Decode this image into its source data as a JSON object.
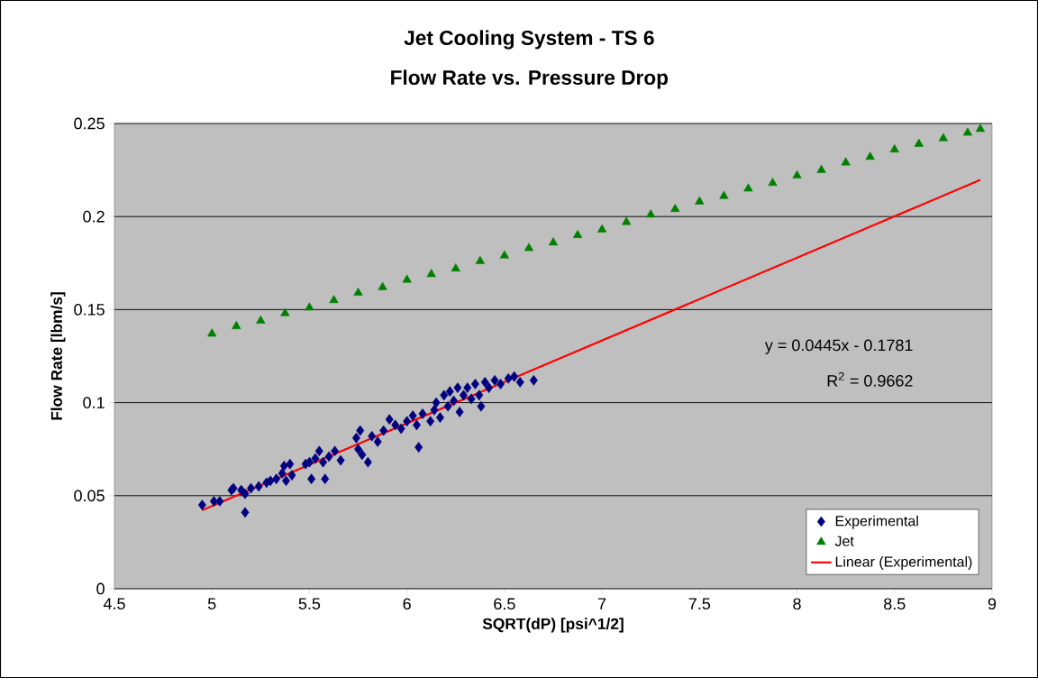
{
  "chart_data": {
    "type": "scatter",
    "title": "Jet Cooling System - TS 6",
    "subtitle": "Flow Rate vs. Pressure Drop",
    "xlabel": "SQRT(dP)  [psi^1/2]",
    "ylabel": "Flow Rate [lbm/s]",
    "annotations": [
      "y = 0.0445x - 0.1781",
      "R$^{2}$ = 0.9662"
    ],
    "xlim": [
      4.5,
      9
    ],
    "ylim": [
      0,
      0.25
    ],
    "xticks": [
      4.5,
      5,
      5.5,
      6,
      6.5,
      7,
      7.5,
      8,
      8.5,
      9
    ],
    "yticks": [
      0,
      0.05,
      0.1,
      0.15,
      0.2,
      0.25
    ],
    "grid": "y",
    "legend": "bottom right",
    "series": [
      {
        "name": "Experimental",
        "marker": "diamond",
        "color": "#000080",
        "x": [
          4.95,
          5.01,
          5.04,
          5.1,
          5.11,
          5.15,
          5.17,
          5.17,
          5.2,
          5.24,
          5.28,
          5.3,
          5.33,
          5.36,
          5.37,
          5.38,
          5.4,
          5.41,
          5.48,
          5.5,
          5.51,
          5.53,
          5.55,
          5.57,
          5.58,
          5.6,
          5.63,
          5.66,
          5.74,
          5.75,
          5.76,
          5.77,
          5.8,
          5.82,
          5.85,
          5.88,
          5.91,
          5.94,
          5.97,
          6.0,
          6.03,
          6.05,
          6.06,
          6.08,
          6.12,
          6.14,
          6.15,
          6.17,
          6.19,
          6.21,
          6.22,
          6.24,
          6.26,
          6.27,
          6.29,
          6.31,
          6.33,
          6.35,
          6.37,
          6.38,
          6.4,
          6.42,
          6.45,
          6.48,
          6.52,
          6.55,
          6.58,
          6.65
        ],
        "values": [
          0.045,
          0.047,
          0.047,
          0.053,
          0.054,
          0.053,
          0.051,
          0.041,
          0.054,
          0.055,
          0.057,
          0.058,
          0.059,
          0.062,
          0.066,
          0.058,
          0.067,
          0.061,
          0.067,
          0.068,
          0.059,
          0.07,
          0.074,
          0.068,
          0.059,
          0.071,
          0.074,
          0.069,
          0.081,
          0.075,
          0.085,
          0.072,
          0.068,
          0.082,
          0.079,
          0.085,
          0.091,
          0.088,
          0.086,
          0.09,
          0.093,
          0.088,
          0.076,
          0.094,
          0.09,
          0.096,
          0.1,
          0.092,
          0.104,
          0.098,
          0.106,
          0.101,
          0.108,
          0.095,
          0.104,
          0.108,
          0.102,
          0.11,
          0.104,
          0.098,
          0.111,
          0.108,
          0.112,
          0.11,
          0.113,
          0.114,
          0.111,
          0.112
        ]
      },
      {
        "name": "Jet",
        "marker": "triangle",
        "color": "#008000",
        "x": [
          5.0,
          5.125,
          5.25,
          5.375,
          5.5,
          5.625,
          5.75,
          5.875,
          6.0,
          6.125,
          6.25,
          6.375,
          6.5,
          6.625,
          6.75,
          6.875,
          7.0,
          7.125,
          7.25,
          7.375,
          7.5,
          7.625,
          7.75,
          7.875,
          8.0,
          8.125,
          8.25,
          8.375,
          8.5,
          8.625,
          8.75,
          8.875,
          8.94
        ],
        "values": [
          0.137,
          0.141,
          0.144,
          0.148,
          0.151,
          0.155,
          0.159,
          0.162,
          0.166,
          0.169,
          0.172,
          0.176,
          0.179,
          0.183,
          0.186,
          0.19,
          0.193,
          0.197,
          0.201,
          0.204,
          0.208,
          0.211,
          0.215,
          0.218,
          0.222,
          0.225,
          0.229,
          0.232,
          0.236,
          0.239,
          0.242,
          0.245,
          0.247
        ]
      },
      {
        "name": "Linear (Experimental)",
        "type": "line",
        "line_style": "solid",
        "marker": "none",
        "color": "#ff0000",
        "x": [
          4.95,
          8.94
        ],
        "values": [
          0.0422,
          0.2197
        ]
      }
    ]
  }
}
